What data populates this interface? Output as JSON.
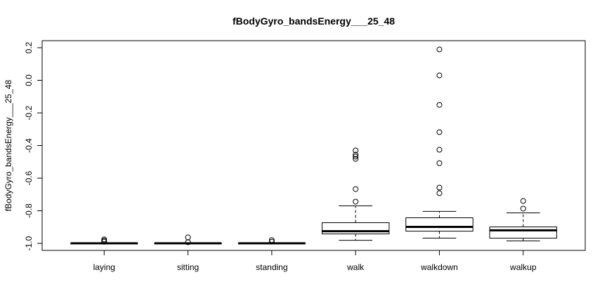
{
  "chart_data": {
    "type": "boxplot",
    "title": "fBodyGyro_bandsEnergy___25_48",
    "ylabel": "fBodyGyro_bandsEnergy___25_48",
    "categories": [
      "laying",
      "sitting",
      "standing",
      "walk",
      "walkdown",
      "walkup"
    ],
    "yticks": [
      "-1.0",
      "-0.8",
      "-0.6",
      "-0.4",
      "-0.2",
      "0.0",
      "0.2"
    ],
    "ylim": [
      -1.043,
      0.243
    ],
    "grid": false,
    "boxes": [
      {
        "whisker_low": -1.0,
        "q1": -1.0,
        "median": -0.9995,
        "q3": -0.999,
        "whisker_high": -0.998,
        "outliers": [
          -0.976,
          -0.983,
          -0.99
        ]
      },
      {
        "whisker_low": -1.0,
        "q1": -1.0,
        "median": -0.9995,
        "q3": -0.999,
        "whisker_high": -0.998,
        "outliers": [
          -0.963,
          -0.993
        ]
      },
      {
        "whisker_low": -1.0,
        "q1": -1.0,
        "median": -0.9995,
        "q3": -0.999,
        "whisker_high": -0.998,
        "outliers": [
          -0.98,
          -0.99
        ]
      },
      {
        "whisker_low": -0.981,
        "q1": -0.942,
        "median": -0.925,
        "q3": -0.873,
        "whisker_high": -0.77,
        "outliers": [
          -0.43,
          -0.456,
          -0.468,
          -0.482,
          -0.667,
          -0.744
        ]
      },
      {
        "whisker_low": -0.968,
        "q1": -0.925,
        "median": -0.899,
        "q3": -0.843,
        "whisker_high": -0.804,
        "outliers": [
          0.189,
          0.03,
          -0.151,
          -0.318,
          -0.426,
          -0.508,
          -0.658,
          -0.692
        ]
      },
      {
        "whisker_low": -0.985,
        "q1": -0.968,
        "median": -0.92,
        "q3": -0.899,
        "whisker_high": -0.813,
        "outliers": [
          -0.74,
          -0.787
        ]
      }
    ]
  }
}
